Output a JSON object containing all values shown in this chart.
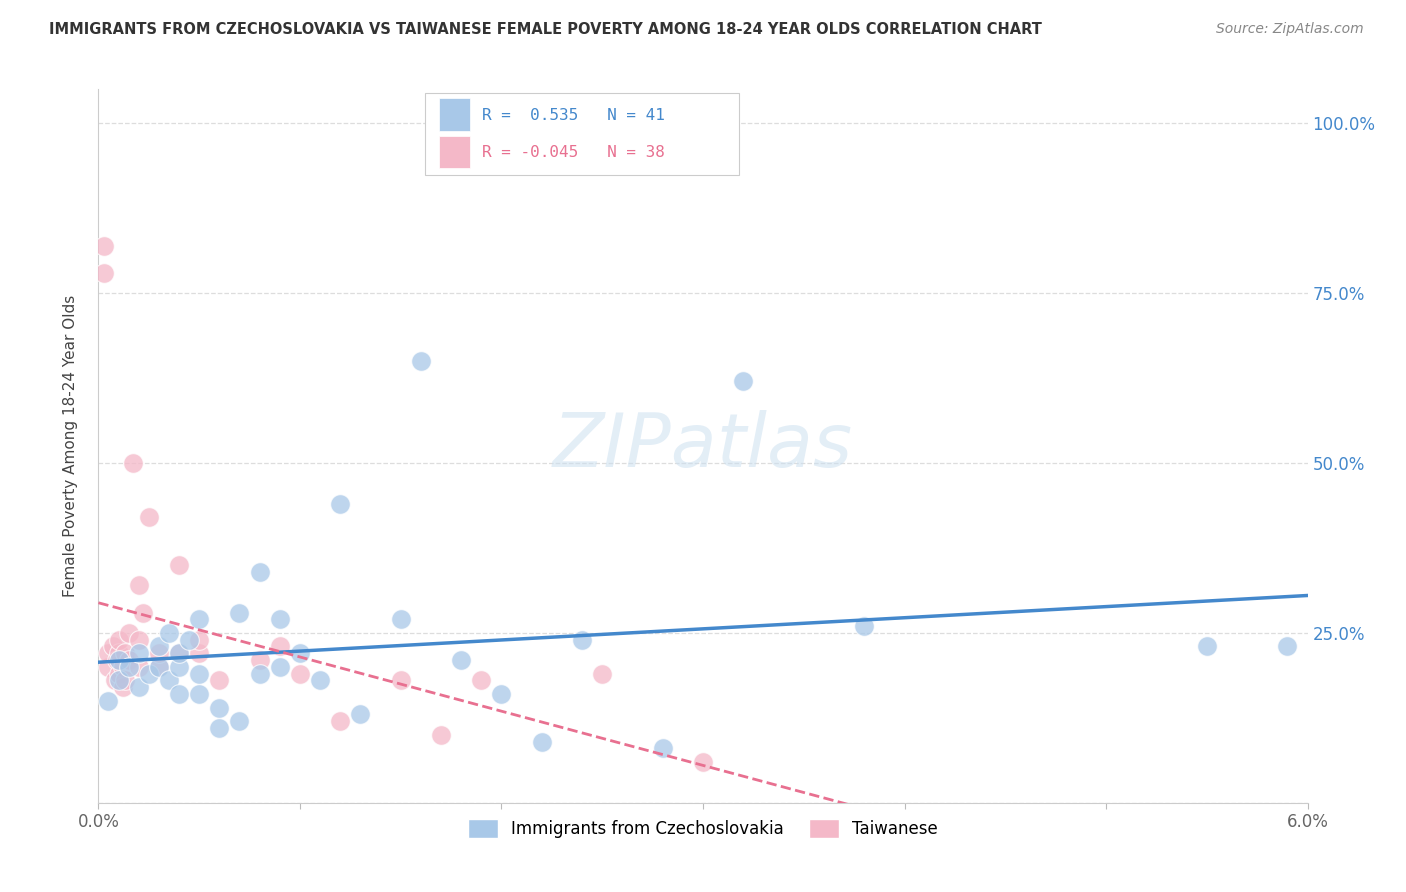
{
  "title": "IMMIGRANTS FROM CZECHOSLOVAKIA VS TAIWANESE FEMALE POVERTY AMONG 18-24 YEAR OLDS CORRELATION CHART",
  "source": "Source: ZipAtlas.com",
  "ylabel": "Female Poverty Among 18-24 Year Olds",
  "xlabel_legend1": "Immigrants from Czechoslovakia",
  "xlabel_legend2": "Taiwanese",
  "r1": 0.535,
  "n1": 41,
  "r2": -0.045,
  "n2": 38,
  "xlim": [
    0.0,
    0.06
  ],
  "ylim": [
    0.0,
    1.05
  ],
  "x_ticks": [
    0.0,
    0.01,
    0.02,
    0.03,
    0.04,
    0.05,
    0.06
  ],
  "x_tick_labels": [
    "0.0%",
    "",
    "",
    "",
    "",
    "",
    "6.0%"
  ],
  "y_ticks": [
    0.0,
    0.25,
    0.5,
    0.75,
    1.0
  ],
  "y_tick_labels": [
    "",
    "25.0%",
    "50.0%",
    "75.0%",
    "100.0%"
  ],
  "blue_color": "#a8c8e8",
  "pink_color": "#f4b8c8",
  "blue_line_color": "#4488cc",
  "pink_line_color": "#e87090",
  "watermark": "ZIPatlas",
  "blue_x": [
    0.0005,
    0.001,
    0.001,
    0.0015,
    0.002,
    0.002,
    0.0025,
    0.003,
    0.003,
    0.0035,
    0.0035,
    0.004,
    0.004,
    0.004,
    0.0045,
    0.005,
    0.005,
    0.005,
    0.006,
    0.006,
    0.007,
    0.007,
    0.008,
    0.008,
    0.009,
    0.009,
    0.01,
    0.011,
    0.012,
    0.013,
    0.015,
    0.016,
    0.018,
    0.02,
    0.022,
    0.024,
    0.028,
    0.032,
    0.038,
    0.055,
    0.059
  ],
  "blue_y": [
    0.15,
    0.18,
    0.21,
    0.2,
    0.22,
    0.17,
    0.19,
    0.2,
    0.23,
    0.18,
    0.25,
    0.16,
    0.2,
    0.22,
    0.24,
    0.16,
    0.19,
    0.27,
    0.11,
    0.14,
    0.12,
    0.28,
    0.19,
    0.34,
    0.2,
    0.27,
    0.22,
    0.18,
    0.44,
    0.13,
    0.27,
    0.65,
    0.21,
    0.16,
    0.09,
    0.24,
    0.08,
    0.62,
    0.26,
    0.23,
    0.23
  ],
  "pink_x": [
    0.0003,
    0.0003,
    0.0005,
    0.0005,
    0.0007,
    0.0008,
    0.0009,
    0.001,
    0.001,
    0.001,
    0.0012,
    0.0012,
    0.0013,
    0.0013,
    0.0015,
    0.0015,
    0.0017,
    0.002,
    0.002,
    0.002,
    0.0022,
    0.0025,
    0.003,
    0.003,
    0.004,
    0.004,
    0.005,
    0.005,
    0.006,
    0.008,
    0.009,
    0.01,
    0.012,
    0.015,
    0.017,
    0.019,
    0.025,
    0.03
  ],
  "pink_y": [
    0.78,
    0.82,
    0.2,
    0.22,
    0.23,
    0.18,
    0.21,
    0.19,
    0.22,
    0.24,
    0.17,
    0.2,
    0.22,
    0.18,
    0.21,
    0.25,
    0.5,
    0.2,
    0.24,
    0.32,
    0.28,
    0.42,
    0.2,
    0.22,
    0.22,
    0.35,
    0.22,
    0.24,
    0.18,
    0.21,
    0.23,
    0.19,
    0.12,
    0.18,
    0.1,
    0.18,
    0.19,
    0.06
  ]
}
